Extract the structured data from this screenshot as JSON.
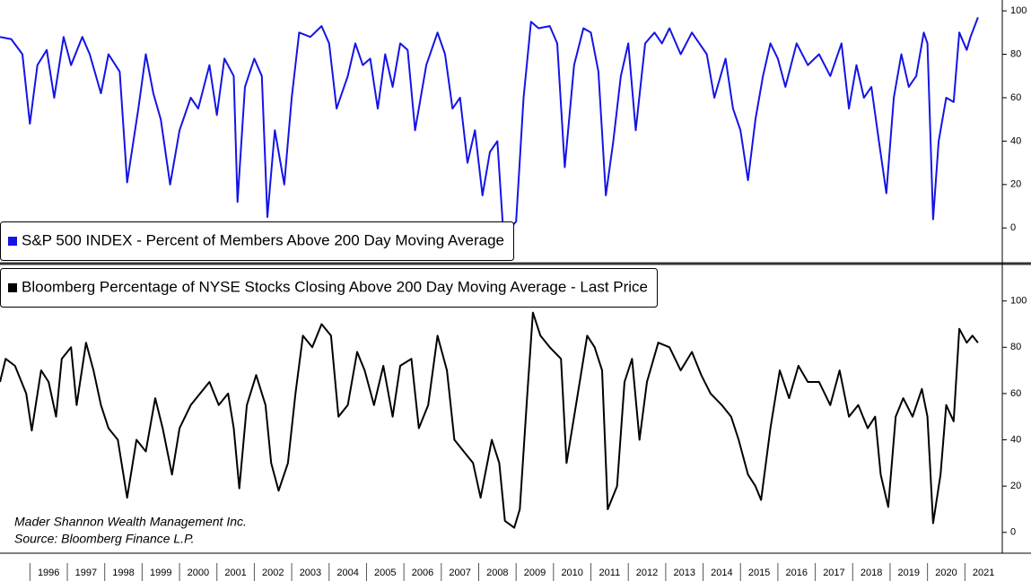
{
  "chart_data": [
    {
      "type": "line",
      "legend": "lower left",
      "grid": false,
      "xlim": [
        1995.2,
        2022
      ],
      "ylim": [
        -16,
        105
      ],
      "yticks": [
        0,
        20,
        40,
        60,
        80,
        100
      ],
      "x": [
        1995.2,
        1995.5,
        1995.8,
        1996.0,
        1996.2,
        1996.45,
        1996.65,
        1996.9,
        1997.1,
        1997.4,
        1997.6,
        1997.9,
        1998.1,
        1998.4,
        1998.6,
        1998.9,
        1999.1,
        1999.3,
        1999.5,
        1999.75,
        2000.0,
        2000.3,
        2000.5,
        2000.8,
        2001.0,
        2001.2,
        2001.45,
        2001.55,
        2001.75,
        2002.0,
        2002.2,
        2002.35,
        2002.55,
        2002.8,
        2003.0,
        2003.2,
        2003.5,
        2003.8,
        2004.0,
        2004.2,
        2004.5,
        2004.7,
        2004.9,
        2005.1,
        2005.3,
        2005.5,
        2005.7,
        2005.9,
        2006.1,
        2006.3,
        2006.6,
        2006.9,
        2007.1,
        2007.3,
        2007.5,
        2007.7,
        2007.9,
        2008.1,
        2008.3,
        2008.5,
        2008.65,
        2008.9,
        2009.0,
        2009.2,
        2009.4,
        2009.6,
        2009.9,
        2010.1,
        2010.3,
        2010.55,
        2010.8,
        2011.0,
        2011.2,
        2011.4,
        2011.6,
        2011.8,
        2012.0,
        2012.2,
        2012.45,
        2012.7,
        2012.9,
        2013.1,
        2013.4,
        2013.7,
        2013.9,
        2014.1,
        2014.3,
        2014.6,
        2014.8,
        2015.0,
        2015.2,
        2015.4,
        2015.6,
        2015.8,
        2016.0,
        2016.2,
        2016.5,
        2016.8,
        2017.1,
        2017.4,
        2017.7,
        2017.9,
        2018.1,
        2018.3,
        2018.5,
        2018.7,
        2018.9,
        2019.1,
        2019.3,
        2019.5,
        2019.7,
        2019.9,
        2020.0,
        2020.15,
        2020.3,
        2020.5,
        2020.7,
        2020.85,
        2021.05,
        2021.15,
        2021.35
      ],
      "series": [
        {
          "name": "S&P 500 INDEX - Percent of Members Above 200 Day Moving Average",
          "color": "#1414e6",
          "values": [
            88,
            87,
            80,
            48,
            75,
            82,
            60,
            88,
            75,
            88,
            80,
            62,
            80,
            72,
            21,
            55,
            80,
            62,
            50,
            20,
            45,
            60,
            55,
            75,
            52,
            78,
            70,
            12,
            65,
            78,
            70,
            5,
            45,
            20,
            60,
            90,
            88,
            93,
            85,
            55,
            70,
            85,
            75,
            78,
            55,
            80,
            65,
            85,
            82,
            45,
            75,
            90,
            80,
            55,
            60,
            30,
            45,
            15,
            35,
            40,
            0,
            1,
            3,
            60,
            95,
            92,
            93,
            85,
            28,
            75,
            92,
            90,
            72,
            15,
            40,
            70,
            85,
            45,
            85,
            90,
            85,
            92,
            80,
            90,
            85,
            80,
            60,
            78,
            55,
            45,
            22,
            50,
            70,
            85,
            78,
            65,
            85,
            75,
            80,
            70,
            85,
            55,
            75,
            60,
            65,
            40,
            16,
            60,
            80,
            65,
            70,
            90,
            85,
            4,
            40,
            60,
            58,
            90,
            82,
            88,
            97
          ]
        }
      ]
    },
    {
      "type": "line",
      "legend": "upper left",
      "grid": false,
      "xlim": [
        1995.2,
        2022
      ],
      "ylim": [
        -9,
        115
      ],
      "yticks": [
        0,
        20,
        40,
        60,
        80,
        100
      ],
      "xticks": [
        1996,
        1997,
        1998,
        1999,
        2000,
        2001,
        2002,
        2003,
        2004,
        2005,
        2006,
        2007,
        2008,
        2009,
        2010,
        2011,
        2012,
        2013,
        2014,
        2015,
        2016,
        2017,
        2018,
        2019,
        2020,
        2021
      ],
      "annotations": [
        "Mader Shannon Wealth Management Inc.",
        "Source: Bloomberg Finance L.P."
      ],
      "x": [
        1995.2,
        1995.35,
        1995.6,
        1995.9,
        1996.05,
        1996.3,
        1996.5,
        1996.7,
        1996.85,
        1997.1,
        1997.25,
        1997.5,
        1997.7,
        1997.9,
        1998.1,
        1998.35,
        1998.6,
        1998.85,
        1999.1,
        1999.35,
        1999.55,
        1999.8,
        2000.0,
        2000.3,
        2000.55,
        2000.8,
        2001.05,
        2001.3,
        2001.45,
        2001.6,
        2001.8,
        2002.05,
        2002.3,
        2002.45,
        2002.65,
        2002.9,
        2003.1,
        2003.3,
        2003.55,
        2003.8,
        2004.05,
        2004.25,
        2004.5,
        2004.75,
        2004.95,
        2005.2,
        2005.45,
        2005.7,
        2005.9,
        2006.2,
        2006.4,
        2006.65,
        2006.9,
        2007.15,
        2007.35,
        2007.6,
        2007.85,
        2008.05,
        2008.35,
        2008.55,
        2008.7,
        2008.95,
        2009.1,
        2009.3,
        2009.45,
        2009.65,
        2009.9,
        2010.2,
        2010.35,
        2010.6,
        2010.9,
        2011.1,
        2011.3,
        2011.45,
        2011.7,
        2011.9,
        2012.1,
        2012.3,
        2012.5,
        2012.8,
        2013.1,
        2013.4,
        2013.7,
        2013.95,
        2014.2,
        2014.5,
        2014.75,
        2014.95,
        2015.2,
        2015.4,
        2015.55,
        2015.8,
        2016.05,
        2016.3,
        2016.55,
        2016.8,
        2017.1,
        2017.4,
        2017.65,
        2017.9,
        2018.15,
        2018.4,
        2018.6,
        2018.75,
        2018.95,
        2019.15,
        2019.35,
        2019.6,
        2019.85,
        2020.0,
        2020.15,
        2020.35,
        2020.5,
        2020.7,
        2020.85,
        2021.05,
        2021.2,
        2021.35
      ],
      "series": [
        {
          "name": "Bloomberg Percentage of NYSE Stocks Closing Above 200 Day Moving Average - Last Price",
          "color": "#000000",
          "values": [
            65,
            75,
            72,
            60,
            44,
            70,
            65,
            50,
            75,
            80,
            55,
            82,
            70,
            55,
            45,
            40,
            15,
            40,
            35,
            58,
            45,
            25,
            45,
            55,
            60,
            65,
            55,
            60,
            45,
            19,
            55,
            68,
            55,
            30,
            18,
            30,
            60,
            85,
            80,
            90,
            85,
            50,
            55,
            78,
            70,
            55,
            72,
            50,
            72,
            75,
            45,
            55,
            85,
            70,
            40,
            35,
            30,
            15,
            40,
            30,
            5,
            2,
            10,
            60,
            95,
            85,
            80,
            75,
            30,
            55,
            85,
            80,
            70,
            10,
            20,
            65,
            75,
            40,
            65,
            82,
            80,
            70,
            78,
            68,
            60,
            55,
            50,
            40,
            25,
            20,
            14,
            45,
            70,
            58,
            72,
            65,
            65,
            55,
            70,
            50,
            55,
            45,
            50,
            25,
            11,
            50,
            58,
            50,
            62,
            50,
            4,
            25,
            55,
            48,
            88,
            82,
            85,
            82
          ]
        }
      ]
    }
  ]
}
